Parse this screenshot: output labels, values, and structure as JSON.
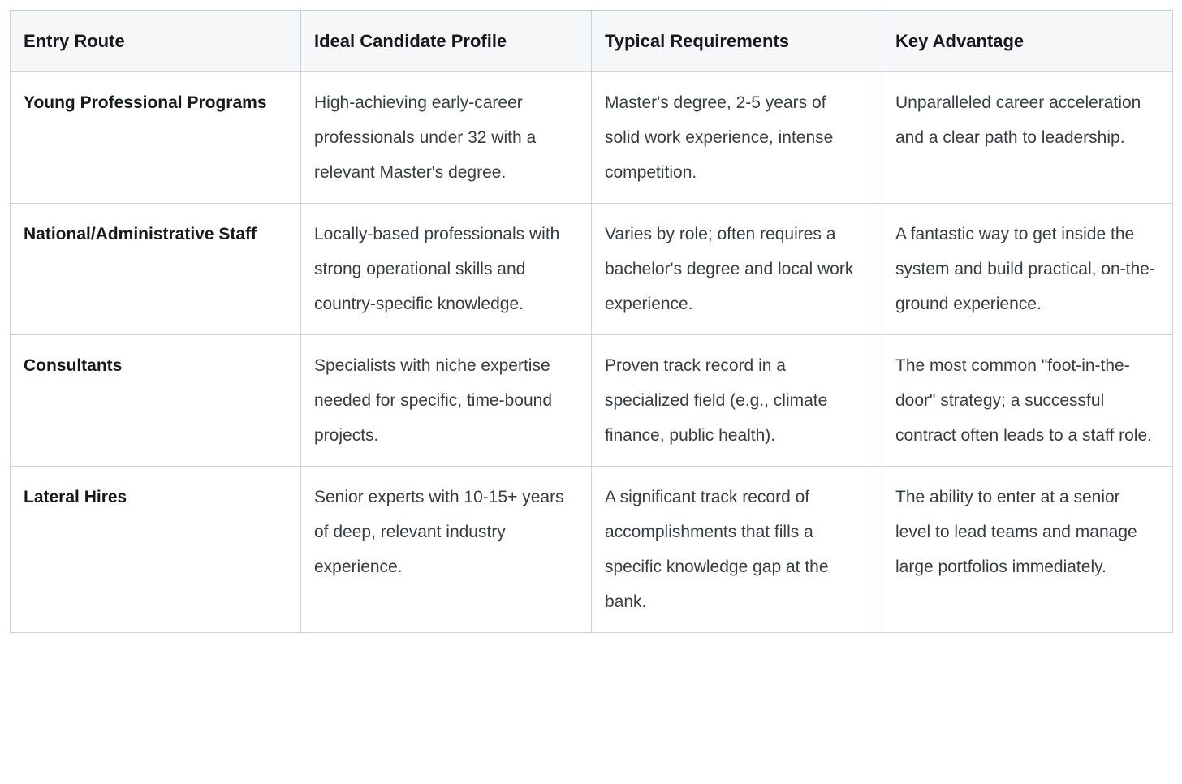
{
  "table": {
    "headers": [
      "Entry Route",
      "Ideal Candidate Profile",
      "Typical Requirements",
      "Key Advantage"
    ],
    "rows": [
      [
        "Young Professional Programs",
        "High-achieving early-career professionals under 32 with a relevant Master's degree.",
        "Master's degree, 2-5 years of solid work experience, intense competition.",
        "Unparalleled career acceleration and a clear path to leadership."
      ],
      [
        "National/Administrative Staff",
        "Locally-based professionals with strong operational skills and country-specific knowledge.",
        "Varies by role; often requires a bachelor's degree and local work experience.",
        "A fantastic way to get inside the system and build practical, on-the-ground experience."
      ],
      [
        "Consultants",
        "Specialists with niche expertise needed for specific, time-bound projects.",
        "Proven track record in a specialized field (e.g., climate finance, public health).",
        "The most common \"foot-in-the-door\" strategy; a successful contract often leads to a staff role."
      ],
      [
        "Lateral Hires",
        "Senior experts with 10-15+ years of deep, relevant industry experience.",
        "A significant track record of accomplishments that fills a specific knowledge gap at the bank.",
        "The ability to enter at a senior level to lead teams and manage large portfolios immediately."
      ]
    ]
  },
  "colors": {
    "border": "#ccd3da",
    "header_background": "#f6f7f9",
    "cell_background": "#ffffff",
    "heading_text": "#15181c",
    "body_text": "#363c43"
  }
}
